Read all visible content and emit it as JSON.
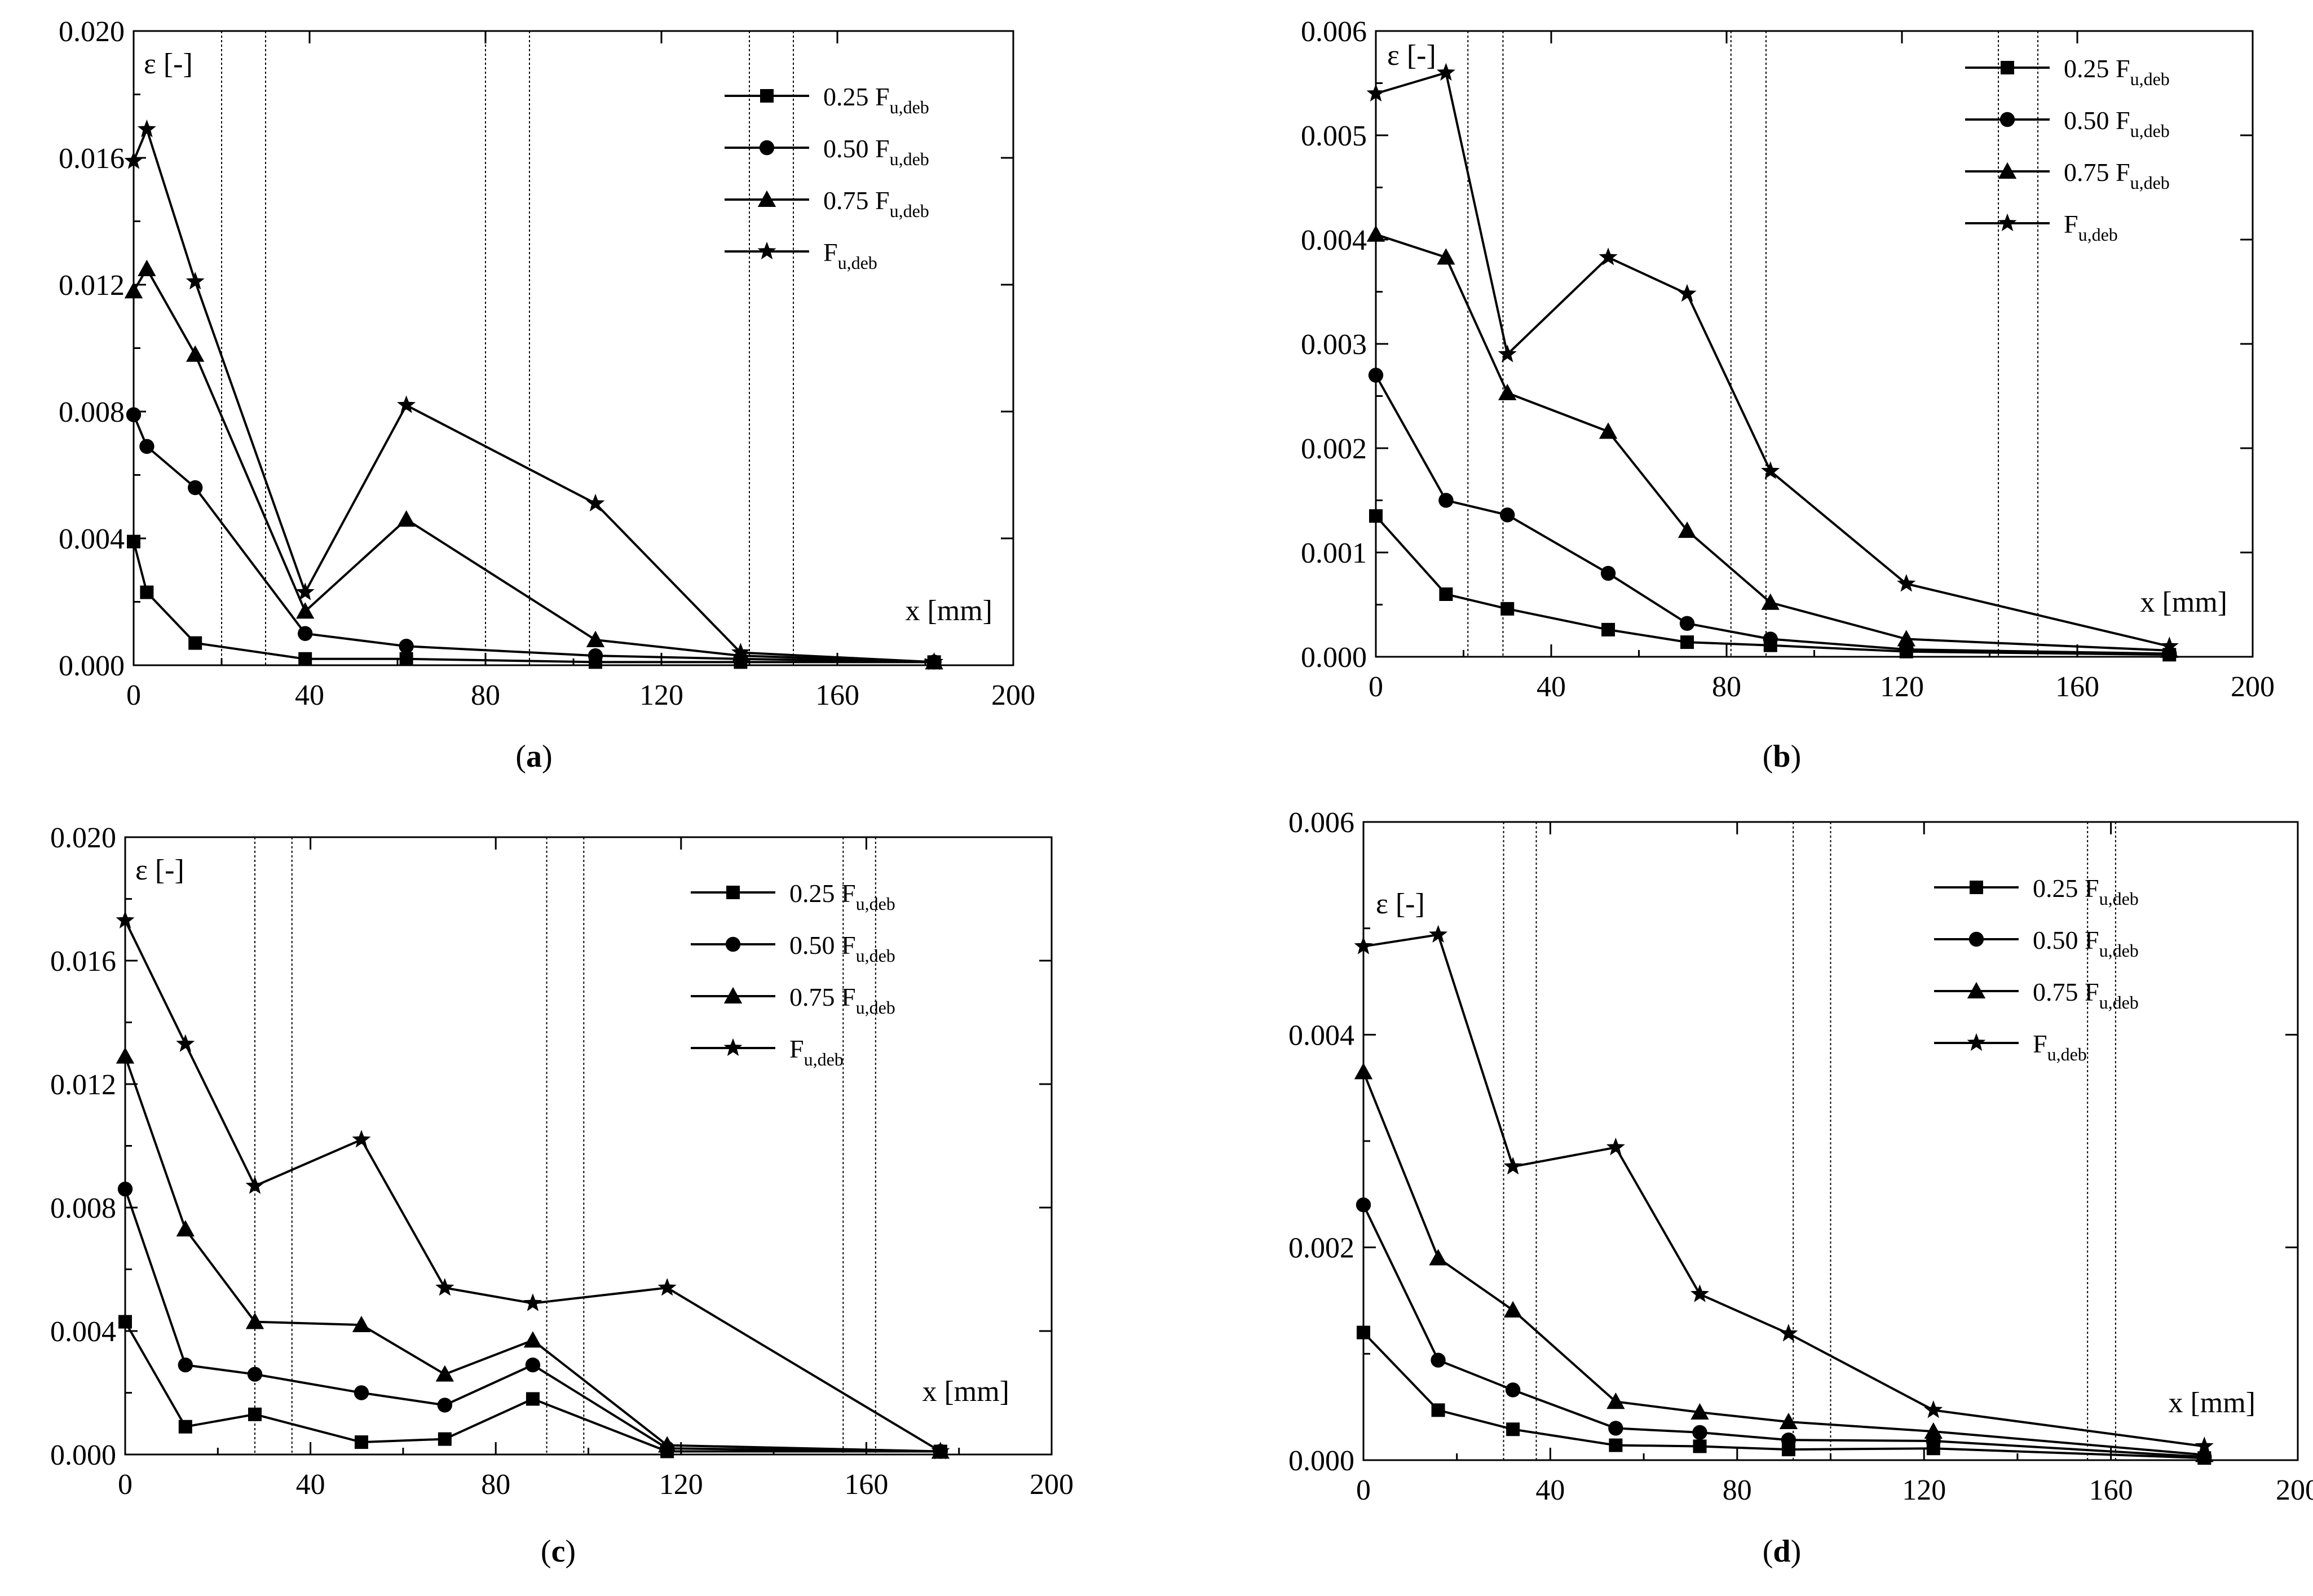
{
  "chart_data": [
    {
      "panel": "(a)",
      "panel_letter": "a",
      "type": "line",
      "xlabel": "x [mm]",
      "ylabel": "ε [-]",
      "xlim": [
        0,
        200
      ],
      "ylim": [
        0,
        0.02
      ],
      "xticks": [
        0,
        40,
        80,
        120,
        160,
        200
      ],
      "yticks": [
        0.0,
        0.004,
        0.008,
        0.012,
        0.016,
        0.02
      ],
      "ytick_labels": [
        "0.000",
        "0.004",
        "0.008",
        "0.012",
        "0.016",
        "0.020"
      ],
      "vertical_lines": [
        20,
        30,
        80,
        90,
        140,
        150
      ],
      "series": [
        {
          "name": "0.25",
          "sub": "u,deb",
          "marker": "square",
          "x": [
            0,
            3,
            14,
            39,
            62,
            105,
            138,
            182
          ],
          "y": [
            0.0039,
            0.0023,
            0.0007,
            0.0002,
            0.0002,
            0.0001,
            0.0001,
            0.0001
          ]
        },
        {
          "name": "0.50",
          "sub": "u,deb",
          "marker": "circle",
          "x": [
            0,
            3,
            14,
            39,
            62,
            105,
            138,
            182
          ],
          "y": [
            0.0079,
            0.0069,
            0.0056,
            0.001,
            0.0006,
            0.0003,
            0.0002,
            0.0001
          ]
        },
        {
          "name": "0.75",
          "sub": "u,deb",
          "marker": "triangle",
          "x": [
            0,
            3,
            14,
            39,
            62,
            105,
            138,
            182
          ],
          "y": [
            0.0118,
            0.0125,
            0.0098,
            0.0017,
            0.0046,
            0.0008,
            0.0003,
            0.0001
          ]
        },
        {
          "name": "",
          "sub": "u,deb",
          "marker": "star",
          "x": [
            0,
            3,
            14,
            39,
            62,
            105,
            138,
            182
          ],
          "y": [
            0.0159,
            0.0169,
            0.0121,
            0.0023,
            0.0082,
            0.0051,
            0.0004,
            0.0001
          ]
        }
      ]
    },
    {
      "panel": "(b)",
      "panel_letter": "b",
      "type": "line",
      "xlabel": "x [mm]",
      "ylabel": "ε [-]",
      "xlim": [
        0,
        200
      ],
      "ylim": [
        0,
        0.006
      ],
      "xticks": [
        0,
        40,
        80,
        120,
        160,
        200
      ],
      "yticks": [
        0.0,
        0.001,
        0.002,
        0.003,
        0.004,
        0.005,
        0.006
      ],
      "ytick_labels": [
        "0.000",
        "0.001",
        "0.002",
        "0.003",
        "0.004",
        "0.005",
        "0.006"
      ],
      "vertical_lines": [
        21,
        29,
        81,
        89,
        142,
        151
      ],
      "series": [
        {
          "name": "0.25",
          "sub": "u,deb",
          "marker": "square",
          "x": [
            0,
            16,
            30,
            53,
            71,
            90,
            121,
            181
          ],
          "y": [
            0.00135,
            0.0006,
            0.00046,
            0.00026,
            0.00014,
            0.00011,
            5e-05,
            2e-05
          ]
        },
        {
          "name": "0.50",
          "sub": "u,deb",
          "marker": "circle",
          "x": [
            0,
            16,
            30,
            53,
            71,
            90,
            121,
            181
          ],
          "y": [
            0.0027,
            0.0015,
            0.00136,
            0.0008,
            0.00032,
            0.00017,
            7e-05,
            3e-05
          ]
        },
        {
          "name": "0.75",
          "sub": "u,deb",
          "marker": "triangle",
          "x": [
            0,
            16,
            30,
            53,
            71,
            90,
            121,
            181
          ],
          "y": [
            0.00405,
            0.00383,
            0.00253,
            0.00216,
            0.00121,
            0.00052,
            0.00017,
            6e-05
          ]
        },
        {
          "name": "",
          "sub": "u,deb",
          "marker": "star",
          "x": [
            0,
            16,
            30,
            53,
            71,
            90,
            121,
            181
          ],
          "y": [
            0.0054,
            0.0056,
            0.0029,
            0.00383,
            0.00348,
            0.00178,
            0.0007,
            0.0001
          ]
        }
      ]
    },
    {
      "panel": "(c)",
      "panel_letter": "c",
      "type": "line",
      "xlabel": "x [mm]",
      "ylabel": "ε [-]",
      "xlim": [
        0,
        200
      ],
      "ylim": [
        0,
        0.02
      ],
      "xticks": [
        0,
        40,
        80,
        120,
        160,
        200
      ],
      "yticks": [
        0.0,
        0.004,
        0.008,
        0.012,
        0.016,
        0.02
      ],
      "ytick_labels": [
        "0.000",
        "0.004",
        "0.008",
        "0.012",
        "0.016",
        "0.020"
      ],
      "vertical_lines": [
        28,
        36,
        91,
        99,
        155,
        162
      ],
      "series": [
        {
          "name": "0.25",
          "sub": "u,deb",
          "marker": "square",
          "x": [
            0,
            13,
            28,
            51,
            69,
            88,
            117,
            176
          ],
          "y": [
            0.0043,
            0.0009,
            0.0013,
            0.0004,
            0.0005,
            0.0018,
            0.0001,
            0.0001
          ]
        },
        {
          "name": "0.50",
          "sub": "u,deb",
          "marker": "circle",
          "x": [
            0,
            13,
            28,
            51,
            69,
            88,
            117,
            176
          ],
          "y": [
            0.0086,
            0.0029,
            0.0026,
            0.002,
            0.0016,
            0.0029,
            0.0002,
            0.0001
          ]
        },
        {
          "name": "0.75",
          "sub": "u,deb",
          "marker": "triangle",
          "x": [
            0,
            13,
            28,
            51,
            69,
            88,
            117,
            176
          ],
          "y": [
            0.0129,
            0.0073,
            0.0043,
            0.0042,
            0.0026,
            0.0037,
            0.0003,
            0.0001
          ]
        },
        {
          "name": "",
          "sub": "u,deb",
          "marker": "star",
          "x": [
            0,
            13,
            28,
            51,
            69,
            88,
            117,
            176
          ],
          "y": [
            0.0173,
            0.0133,
            0.0087,
            0.0102,
            0.0054,
            0.0049,
            0.0054,
            0.0001
          ]
        }
      ]
    },
    {
      "panel": "(d)",
      "panel_letter": "d",
      "type": "line",
      "xlabel": "x [mm]",
      "ylabel": "ε [-]",
      "xlim": [
        0,
        200
      ],
      "ylim": [
        0,
        0.006
      ],
      "xticks": [
        0,
        40,
        80,
        120,
        160,
        200
      ],
      "yticks": [
        0.0,
        0.002,
        0.004,
        0.006
      ],
      "ytick_labels": [
        "0.000",
        "0.002",
        "0.004",
        "0.006"
      ],
      "vertical_lines": [
        30,
        37,
        92,
        100,
        155,
        161
      ],
      "series": [
        {
          "name": "0.25",
          "sub": "u,deb",
          "marker": "square",
          "x": [
            0,
            16,
            32,
            54,
            72,
            91,
            122,
            180
          ],
          "y": [
            0.0012,
            0.00047,
            0.00029,
            0.00014,
            0.00013,
            0.0001,
            0.00011,
            2e-05
          ]
        },
        {
          "name": "0.50",
          "sub": "u,deb",
          "marker": "circle",
          "x": [
            0,
            16,
            32,
            54,
            72,
            91,
            122,
            180
          ],
          "y": [
            0.0024,
            0.00094,
            0.00066,
            0.0003,
            0.00026,
            0.00019,
            0.00018,
            3e-05
          ]
        },
        {
          "name": "0.75",
          "sub": "u,deb",
          "marker": "triangle",
          "x": [
            0,
            16,
            32,
            54,
            72,
            91,
            122,
            180
          ],
          "y": [
            0.00365,
            0.0019,
            0.00141,
            0.00055,
            0.00045,
            0.00036,
            0.00027,
            5e-05
          ]
        },
        {
          "name": "",
          "sub": "u,deb",
          "marker": "star",
          "x": [
            0,
            16,
            32,
            54,
            72,
            91,
            122,
            180
          ],
          "y": [
            0.00483,
            0.00494,
            0.00276,
            0.00294,
            0.00156,
            0.00119,
            0.00047,
            0.00013
          ]
        }
      ]
    }
  ]
}
